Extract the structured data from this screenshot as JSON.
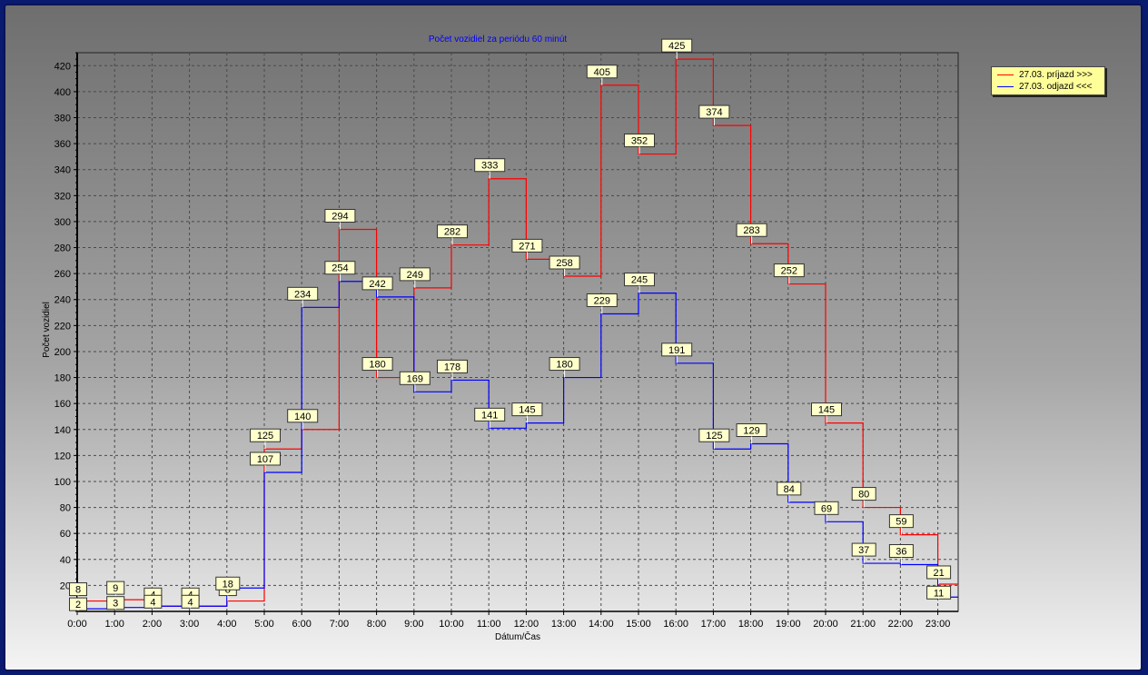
{
  "chart_data": {
    "type": "line",
    "step": true,
    "title": "Počet vozidiel za periódu 60 minút",
    "xlabel": "Dátum/Čas",
    "ylabel": "Počet vozidiel",
    "ylim": [
      0,
      430
    ],
    "yticks": [
      20,
      40,
      60,
      80,
      100,
      120,
      140,
      160,
      180,
      200,
      220,
      240,
      260,
      280,
      300,
      320,
      340,
      360,
      380,
      400,
      420
    ],
    "categories": [
      "0:00",
      "1:00",
      "2:00",
      "3:00",
      "4:00",
      "5:00",
      "6:00",
      "7:00",
      "8:00",
      "9:00",
      "10:00",
      "11:00",
      "12:00",
      "13:00",
      "14:00",
      "15:00",
      "16:00",
      "17:00",
      "18:00",
      "19:00",
      "20:00",
      "21:00",
      "22:00",
      "23:00"
    ],
    "grid": true,
    "legend_position": "top-right, outside plot",
    "series": [
      {
        "name": "27.03. príjazd >>>",
        "color": "#ff0000",
        "legend_color": "#ff0000",
        "values": [
          8,
          9,
          4,
          4,
          8,
          125,
          140,
          294,
          180,
          249,
          282,
          333,
          271,
          258,
          405,
          352,
          425,
          374,
          283,
          252,
          145,
          80,
          59,
          21
        ]
      },
      {
        "name": "27.03. odjazd <<<",
        "color": "#0000ff",
        "legend_color": "#0000ff",
        "values": [
          2,
          3,
          4,
          4,
          18,
          107,
          234,
          254,
          242,
          169,
          178,
          141,
          145,
          180,
          229,
          245,
          191,
          125,
          129,
          84,
          69,
          37,
          36,
          11
        ]
      }
    ]
  }
}
